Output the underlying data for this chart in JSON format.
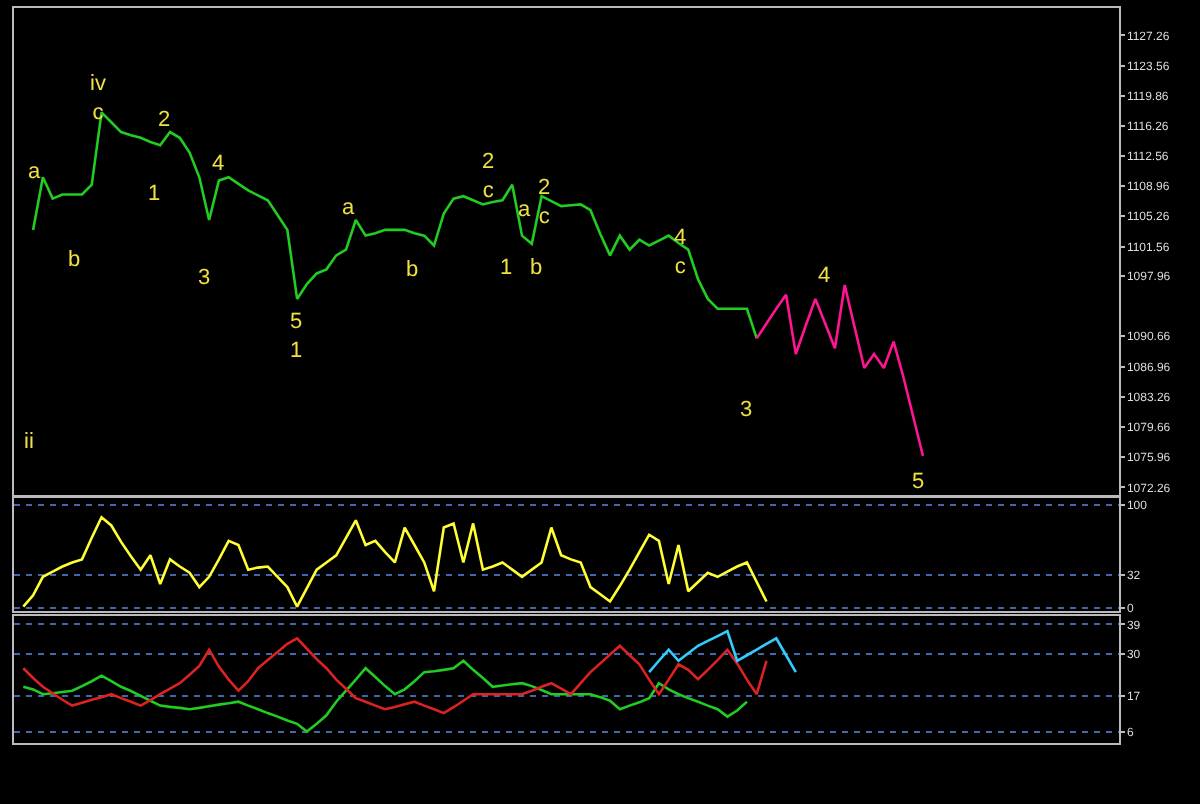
{
  "chart_data": [
    {
      "type": "line",
      "categories": [
        null,
        null,
        null,
        null,
        null,
        null,
        null,
        null,
        null,
        null,
        null,
        null,
        null,
        null,
        null,
        null,
        null,
        null,
        null,
        null,
        null,
        null,
        null,
        null,
        null,
        null,
        null,
        null,
        null,
        null,
        null,
        null,
        null,
        null,
        null,
        null,
        null,
        null,
        null,
        null,
        null,
        null,
        null,
        null,
        null,
        null,
        null,
        null,
        null,
        null,
        null,
        null,
        null,
        null,
        null,
        null,
        null,
        null,
        null,
        null,
        null,
        null,
        null,
        null,
        null,
        null,
        null,
        null,
        null,
        null,
        null,
        null,
        null,
        null,
        null,
        null,
        null,
        null,
        null,
        null,
        null,
        null,
        null,
        null,
        null,
        null,
        null,
        null,
        null,
        null,
        null,
        null,
        null,
        null,
        null,
        null,
        null,
        null,
        null,
        null,
        null,
        null,
        null,
        null,
        null,
        null,
        null,
        null,
        null,
        null,
        null,
        null,
        null
      ],
      "series": [
        {
          "color": "#22cc22",
          "values": [
            null,
            1103.6,
            1110.0,
            1107.4,
            1107.9,
            1107.9,
            1107.9,
            1109.1,
            1117.9,
            1116.7,
            1115.5,
            1115.1,
            1114.8,
            1114.3,
            1113.9,
            1115.5,
            1114.8,
            1113.0,
            1110.0,
            1104.8,
            1109.6,
            1110.0,
            1109.2,
            1108.4,
            1107.8,
            1107.2,
            1105.4,
            1103.6,
            1095.2,
            1097.0,
            1098.3,
            1098.8,
            1100.5,
            1101.2,
            1104.8,
            1102.9,
            1103.2,
            1103.6,
            1103.6,
            1103.6,
            1103.2,
            1102.9,
            1101.7,
            1105.6,
            1107.4,
            1107.7,
            1107.2,
            1106.7,
            1107.0,
            1107.2,
            1109.1,
            1102.9,
            1101.9,
            1107.7,
            1107.1,
            1106.5,
            1106.6,
            1106.7,
            1106.0,
            1103.1,
            1100.5,
            1102.9,
            1101.2,
            1102.4,
            1101.7,
            1102.3,
            1102.9,
            1102.0,
            1101.2,
            1097.6,
            1095.2,
            1094.0,
            1094.0,
            1094.0,
            1094.0,
            1090.4,
            null,
            null,
            null,
            null,
            null,
            null,
            null,
            null,
            null,
            null,
            null,
            null,
            null,
            null,
            null,
            null,
            null,
            null,
            null,
            null,
            null,
            null,
            null,
            null,
            null,
            null,
            null,
            null,
            null,
            null,
            null,
            null,
            null,
            null,
            null,
            null,
            null
          ]
        },
        {
          "color": "#ff1493",
          "values": [
            null,
            null,
            null,
            null,
            null,
            null,
            null,
            null,
            null,
            null,
            null,
            null,
            null,
            null,
            null,
            null,
            null,
            null,
            null,
            null,
            null,
            null,
            null,
            null,
            null,
            null,
            null,
            null,
            null,
            null,
            null,
            null,
            null,
            null,
            null,
            null,
            null,
            null,
            null,
            null,
            null,
            null,
            null,
            null,
            null,
            null,
            null,
            null,
            null,
            null,
            null,
            null,
            null,
            null,
            null,
            null,
            null,
            null,
            null,
            null,
            null,
            null,
            null,
            null,
            null,
            null,
            null,
            null,
            null,
            null,
            null,
            null,
            null,
            null,
            null,
            1090.4,
            1092.2,
            1094.0,
            1095.7,
            1088.5,
            1091.9,
            1095.2,
            1092.2,
            1089.2,
            1096.9,
            1091.8,
            1086.8,
            1088.5,
            1086.8,
            1090.0,
            1085.7,
            1080.9,
            1076.1,
            null,
            null,
            null,
            null,
            null,
            null,
            null,
            null,
            null,
            null,
            null,
            null,
            null,
            null,
            null,
            null,
            null,
            null,
            null,
            null
          ]
        }
      ],
      "ylim": [
        1071.3,
        1130.6
      ],
      "yticks": [
        1072.26,
        1075.96,
        1079.66,
        1083.26,
        1086.96,
        1090.66,
        1097.96,
        1101.56,
        1105.26,
        1108.96,
        1112.56,
        1116.26,
        1119.86,
        1123.56,
        1127.26
      ],
      "tick_labels": "y",
      "annotations": [
        "a",
        "b",
        "iv\nc",
        "1",
        "2",
        "3",
        "4",
        "5\n1",
        "a",
        "b",
        "2\nc",
        "a",
        "1",
        "b",
        "2\nc",
        "4\nc",
        "3",
        "4",
        "5",
        "ii"
      ]
    },
    {
      "type": "line",
      "categories": [
        null,
        null,
        null,
        null,
        null,
        null,
        null,
        null,
        null,
        null,
        null,
        null,
        null,
        null,
        null,
        null,
        null,
        null,
        null,
        null,
        null,
        null,
        null,
        null,
        null,
        null,
        null,
        null,
        null,
        null,
        null,
        null,
        null,
        null,
        null,
        null,
        null,
        null,
        null,
        null,
        null,
        null,
        null,
        null,
        null,
        null,
        null,
        null,
        null,
        null,
        null,
        null,
        null,
        null,
        null,
        null,
        null,
        null,
        null,
        null,
        null,
        null,
        null,
        null,
        null,
        null,
        null,
        null,
        null,
        null,
        null,
        null,
        null,
        null,
        null,
        null,
        null,
        null,
        null,
        null,
        null,
        null,
        null,
        null,
        null,
        null,
        null,
        null,
        null,
        null,
        null,
        null,
        null,
        null,
        null,
        null,
        null,
        null,
        null,
        null,
        null,
        null,
        null,
        null,
        null,
        null,
        null,
        null,
        null,
        null,
        null,
        null,
        null
      ],
      "series": [
        {
          "color": "#ffff33",
          "values": [
            1,
            12,
            30,
            35,
            40,
            44,
            47,
            68,
            88,
            80,
            64,
            50,
            37,
            51,
            23,
            47,
            40,
            34,
            20,
            30,
            47,
            65,
            61,
            37,
            39,
            40,
            30,
            20,
            1,
            19,
            37,
            44,
            51,
            68,
            85,
            61,
            65,
            54,
            44,
            78,
            61,
            44,
            16,
            78,
            82,
            44,
            82,
            37,
            40,
            44,
            37,
            30,
            37,
            44,
            78,
            51,
            47,
            44,
            20,
            13,
            6,
            21,
            37,
            54,
            71,
            65,
            23,
            61,
            16,
            25,
            34,
            30,
            35,
            40,
            44,
            25,
            6,
            null,
            null,
            null,
            null,
            null,
            null,
            null,
            null,
            null,
            null,
            null,
            null,
            null,
            null,
            null,
            null,
            null,
            null,
            null,
            null,
            null,
            null,
            null,
            null,
            null,
            null,
            null,
            null,
            null,
            null,
            null,
            null,
            null,
            null,
            null,
            null
          ]
        }
      ],
      "ylim": [
        -3,
        107
      ],
      "yticks": [
        0,
        32,
        100
      ],
      "tick_labels": "y",
      "grid": "y"
    },
    {
      "type": "line",
      "categories": [
        null,
        null,
        null,
        null,
        null,
        null,
        null,
        null,
        null,
        null,
        null,
        null,
        null,
        null,
        null,
        null,
        null,
        null,
        null,
        null,
        null,
        null,
        null,
        null,
        null,
        null,
        null,
        null,
        null,
        null,
        null,
        null,
        null,
        null,
        null,
        null,
        null,
        null,
        null,
        null,
        null,
        null,
        null,
        null,
        null,
        null,
        null,
        null,
        null,
        null,
        null,
        null,
        null,
        null,
        null,
        null,
        null,
        null,
        null,
        null,
        null,
        null,
        null,
        null,
        null,
        null,
        null,
        null,
        null,
        null,
        null,
        null,
        null,
        null,
        null,
        null,
        null,
        null,
        null,
        null,
        null,
        null,
        null,
        null,
        null,
        null,
        null,
        null,
        null,
        null,
        null,
        null,
        null,
        null,
        null,
        null,
        null,
        null,
        null,
        null,
        null,
        null,
        null,
        null,
        null,
        null,
        null,
        null,
        null,
        null,
        null,
        null,
        null
      ],
      "ylim": [
        2.6,
        41.5
      ],
      "yticks": [
        6,
        17,
        30,
        39
      ],
      "tick_labels": "y",
      "grid": "y",
      "series": [
        {
          "color": "#22cc22",
          "values": [
            19.8,
            19,
            17.5,
            17.8,
            18.2,
            18.6,
            20,
            21.5,
            23.2,
            21.5,
            19.8,
            18.5,
            17,
            15.5,
            14.0,
            13.6,
            13.3,
            12.9,
            13.3,
            13.8,
            14.3,
            14.7,
            15.2,
            14.0,
            12.9,
            11.7,
            10.6,
            9.4,
            8.4,
            6,
            8.4,
            11,
            15.2,
            18.6,
            22,
            25.5,
            22.8,
            20,
            17.5,
            19,
            21.5,
            24.3,
            24.6,
            25,
            25.5,
            27.8,
            25,
            22.5,
            19.8,
            20.2,
            20.6,
            20.9,
            20,
            18.8,
            17.5,
            17.5,
            17.5,
            17.5,
            17.5,
            16.6,
            15.5,
            12.9,
            14,
            15,
            16.3,
            20.9,
            19,
            17.5,
            16.3,
            15.2,
            14,
            12.9,
            10.6,
            12.5,
            15.2,
            null,
            null,
            null,
            null,
            null,
            null,
            null,
            null,
            null,
            null,
            null,
            null,
            null,
            null,
            null,
            null,
            null,
            null,
            null,
            null,
            null,
            null,
            null,
            null,
            null,
            null,
            null,
            null,
            null,
            null,
            null,
            null,
            null,
            null,
            null,
            null,
            null,
            null
          ]
        },
        {
          "color": "#dd2222",
          "values": [
            25.5,
            22.5,
            19.8,
            17.8,
            15.8,
            14.0,
            14.9,
            15.8,
            16.6,
            17.5,
            16.3,
            15.2,
            14.0,
            15.7,
            17.5,
            19.2,
            20.9,
            23.5,
            26.2,
            31.2,
            26,
            22,
            18.6,
            21.5,
            25.5,
            28,
            30.5,
            33,
            34.7,
            31.5,
            28.3,
            25.5,
            22,
            19.2,
            16.3,
            15.2,
            14,
            12.9,
            13.6,
            14.4,
            15.2,
            14,
            12.9,
            11.7,
            13.5,
            15.5,
            17.5,
            17.5,
            17.5,
            17.5,
            17.5,
            17.5,
            18.6,
            19.8,
            20.9,
            19.2,
            17.5,
            20.9,
            24.3,
            27,
            29.7,
            32.4,
            29.5,
            26.7,
            22,
            17.5,
            22,
            26.7,
            25,
            22.1,
            25,
            28,
            31.2,
            27,
            22,
            17.5,
            27.8,
            null,
            null,
            null,
            null,
            null,
            null,
            null,
            null,
            null,
            null,
            null,
            null,
            null,
            null,
            null,
            null,
            null,
            null,
            null,
            null,
            null,
            null,
            null,
            null,
            null,
            null,
            null,
            null,
            null,
            null,
            null,
            null,
            null,
            null,
            null,
            null
          ]
        },
        {
          "color": "#33ccff",
          "values": [
            null,
            null,
            null,
            null,
            null,
            null,
            null,
            null,
            null,
            null,
            null,
            null,
            null,
            null,
            null,
            null,
            null,
            null,
            null,
            null,
            null,
            null,
            null,
            null,
            null,
            null,
            null,
            null,
            null,
            null,
            null,
            null,
            null,
            null,
            null,
            null,
            null,
            null,
            null,
            null,
            null,
            null,
            null,
            null,
            null,
            null,
            null,
            null,
            null,
            null,
            null,
            null,
            null,
            null,
            null,
            null,
            null,
            null,
            null,
            null,
            null,
            null,
            null,
            null,
            24.3,
            27.8,
            31.2,
            27.8,
            30.1,
            32.4,
            33.9,
            35.4,
            36.9,
            27.8,
            29.5,
            31.2,
            33,
            34.7,
            29.5,
            24.3,
            null,
            null,
            null,
            null,
            null,
            null,
            null,
            null,
            null,
            null,
            null,
            null,
            null,
            null,
            null,
            null,
            null,
            null,
            null,
            null,
            null,
            null,
            null,
            null,
            null,
            null,
            null,
            null,
            null,
            null,
            null,
            null,
            null
          ]
        }
      ]
    }
  ]
}
